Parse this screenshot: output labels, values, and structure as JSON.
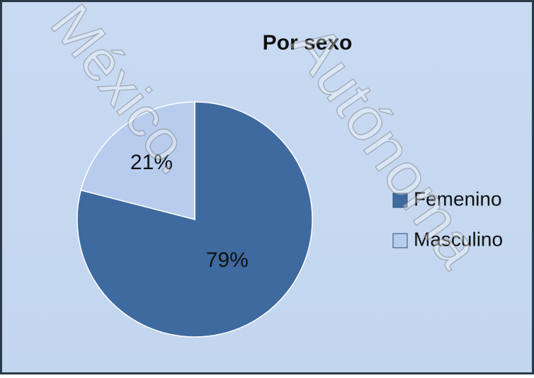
{
  "chart_data": {
    "type": "pie",
    "title": "Por sexo",
    "categories": [
      "Femenino",
      "Masculino"
    ],
    "values": [
      79,
      21
    ],
    "value_labels": [
      "79%",
      "21%"
    ],
    "colors": [
      "#3e6aa0",
      "#b8cdee"
    ],
    "legend": "right",
    "annotations": [
      "México.",
      "Autónoma"
    ]
  }
}
